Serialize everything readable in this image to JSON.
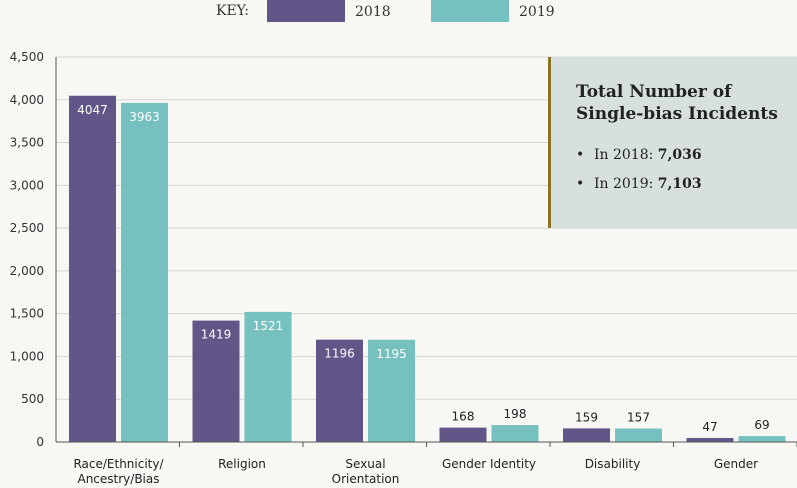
{
  "legend": {
    "key_label": "KEY:",
    "entries": [
      {
        "label": "2018",
        "color": "#625587"
      },
      {
        "label": "2019",
        "color": "#76c0c0"
      }
    ]
  },
  "info_box": {
    "title": "Total Number of Single-bias Incidents",
    "items": [
      {
        "prefix": "In 2018: ",
        "value": "7,036"
      },
      {
        "prefix": "In 2019: ",
        "value": "7,103"
      }
    ]
  },
  "chart_data": {
    "type": "bar",
    "title": "",
    "xlabel": "",
    "ylabel": "",
    "ylim": [
      0,
      4500
    ],
    "yticks": [
      0,
      500,
      1000,
      1500,
      2000,
      2500,
      3000,
      3500,
      4000,
      4500
    ],
    "ytick_labels": [
      "0",
      "500",
      "1,000",
      "1,500",
      "2,000",
      "2,500",
      "3,000",
      "3,500",
      "4,000",
      "4,500"
    ],
    "grid": true,
    "categories": [
      [
        "Race/Ethnicity/",
        "Ancestry/Bias"
      ],
      [
        "Religion"
      ],
      [
        "Sexual",
        "Orientation"
      ],
      [
        "Gender Identity"
      ],
      [
        "Disability"
      ],
      [
        "Gender"
      ]
    ],
    "series": [
      {
        "name": "2018",
        "color": "#625587",
        "values": [
          4047,
          1419,
          1196,
          168,
          159,
          47
        ]
      },
      {
        "name": "2019",
        "color": "#76c0c0",
        "values": [
          3963,
          1521,
          1195,
          198,
          157,
          69
        ]
      }
    ]
  }
}
